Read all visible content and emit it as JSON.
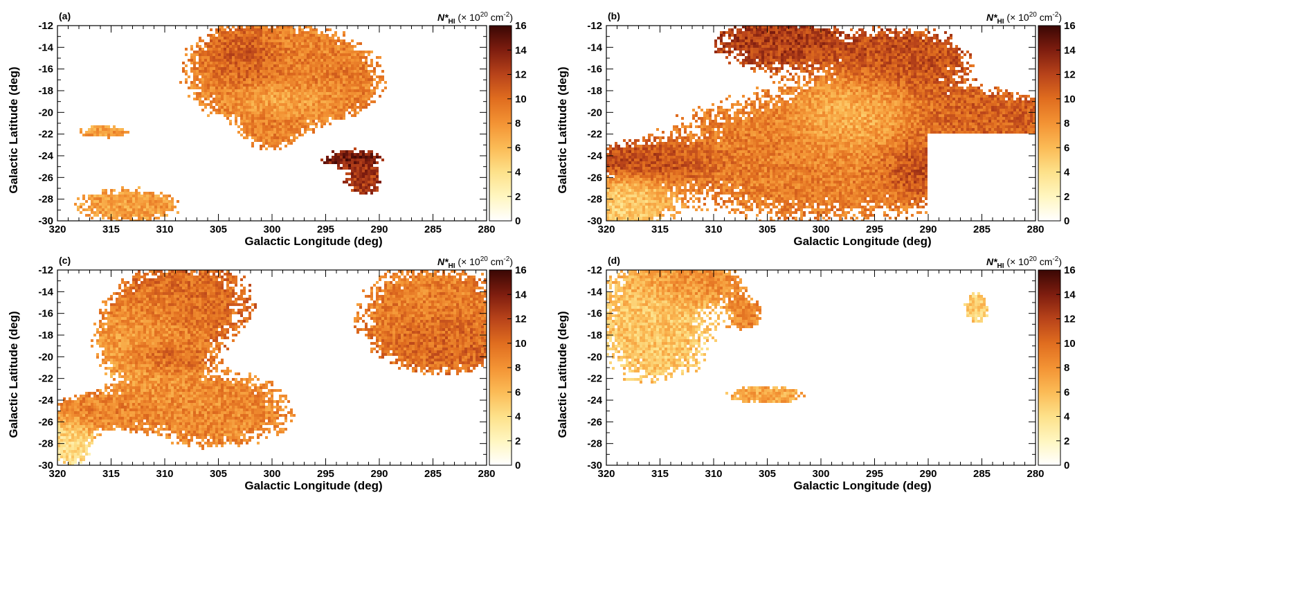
{
  "figure": {
    "xlabel": "Galactic Longitude (deg)",
    "ylabel": "Galactic Latitude (deg)",
    "colorbar": {
      "title_symbol": "N*",
      "title_sub": "HI",
      "title_rest": " (× 10",
      "title_exp": "20",
      "title_unit": " cm",
      "title_unit_exp": "-2",
      "title_close": ")",
      "min": 0,
      "max": 16,
      "ticks": [
        "0",
        "2",
        "4",
        "6",
        "8",
        "10",
        "12",
        "14",
        "16"
      ],
      "colors": [
        "#ffffff",
        "#fff6c0",
        "#fde18a",
        "#fbbb56",
        "#f39334",
        "#e06d1f",
        "#b8431a",
        "#7e1d0f",
        "#3a0704"
      ]
    }
  },
  "chart_data": [
    {
      "type": "heatmap",
      "panel": "(a)",
      "x_ticks": [
        "320",
        "315",
        "310",
        "305",
        "300",
        "295",
        "290",
        "285",
        "280"
      ],
      "y_ticks": [
        "-12",
        "-14",
        "-16",
        "-18",
        "-20",
        "-22",
        "-24",
        "-26",
        "-28",
        "-30"
      ],
      "xlim": [
        320,
        280
      ],
      "ylim": [
        -30,
        -12
      ],
      "blobs": [
        {
          "l": 300,
          "b": -16.5,
          "sl": 6.0,
          "sb": 3.5,
          "v": 8.5
        },
        {
          "l": 302.5,
          "b": -15,
          "sl": 2.0,
          "sb": 1.5,
          "v": 12.5
        },
        {
          "l": 296,
          "b": -17,
          "sl": 3.5,
          "sb": 2.0,
          "v": 9.5
        },
        {
          "l": 298.5,
          "b": -18.8,
          "sl": 2.5,
          "sb": 0.8,
          "v": 5.0
        },
        {
          "l": 300,
          "b": -21.5,
          "sl": 1.5,
          "sb": 1.2,
          "v": 9.0
        },
        {
          "l": 292.5,
          "b": -24.3,
          "sl": 1.8,
          "sb": 0.6,
          "v": 14.5
        },
        {
          "l": 291.5,
          "b": -26.3,
          "sl": 1.2,
          "sb": 1.0,
          "v": 12.5
        },
        {
          "l": 313.5,
          "b": -28.6,
          "sl": 3.5,
          "sb": 1.2,
          "v": 7.5
        },
        {
          "l": 315.5,
          "b": -21.8,
          "sl": 1.8,
          "sb": 0.4,
          "v": 7.5
        }
      ]
    },
    {
      "type": "heatmap",
      "panel": "(b)",
      "x_ticks": [
        "320",
        "315",
        "310",
        "305",
        "300",
        "295",
        "290",
        "285",
        "280"
      ],
      "y_ticks": [
        "-12",
        "-14",
        "-16",
        "-18",
        "-20",
        "-22",
        "-24",
        "-26",
        "-28",
        "-30"
      ],
      "xlim": [
        320,
        280
      ],
      "ylim": [
        -30,
        -12
      ],
      "blobs": [
        {
          "l": 300,
          "b": -24,
          "sl": 11,
          "sb": 4.5,
          "v": 9.0
        },
        {
          "l": 304,
          "b": -13.5,
          "sl": 4.0,
          "sb": 1.5,
          "v": 12.5
        },
        {
          "l": 292,
          "b": -15,
          "sl": 4.0,
          "sb": 2.0,
          "v": 11.5
        },
        {
          "l": 284,
          "b": -20.5,
          "sl": 5.0,
          "sb": 1.5,
          "v": 11.0
        },
        {
          "l": 316,
          "b": -24.5,
          "sl": 3.5,
          "sb": 1.0,
          "v": 12.5
        },
        {
          "l": 297,
          "b": -20.5,
          "sl": 3.0,
          "sb": 2.0,
          "v": 5.0
        },
        {
          "l": 318,
          "b": -28.5,
          "sl": 2.5,
          "sb": 1.5,
          "v": 4.5
        },
        {
          "l": 291,
          "b": -25,
          "sl": 2.0,
          "sb": 1.5,
          "v": 13.0
        }
      ],
      "blank_region": {
        "l_from": 290,
        "l_to": 280,
        "b_from": -30,
        "b_to": -22
      }
    },
    {
      "type": "heatmap",
      "panel": "(c)",
      "x_ticks": [
        "320",
        "315",
        "310",
        "305",
        "300",
        "295",
        "290",
        "285",
        "280"
      ],
      "y_ticks": [
        "-12",
        "-14",
        "-16",
        "-18",
        "-20",
        "-22",
        "-24",
        "-26",
        "-28",
        "-30"
      ],
      "xlim": [
        320,
        280
      ],
      "ylim": [
        -30,
        -12
      ],
      "blobs": [
        {
          "l": 308,
          "b": -15,
          "sl": 4.5,
          "sb": 3.0,
          "v": 10.0
        },
        {
          "l": 312,
          "b": -19,
          "sl": 3.0,
          "sb": 2.5,
          "v": 7.0
        },
        {
          "l": 305,
          "b": -25,
          "sl": 5.0,
          "sb": 2.5,
          "v": 8.5
        },
        {
          "l": 316,
          "b": -25,
          "sl": 3.0,
          "sb": 1.2,
          "v": 9.0
        },
        {
          "l": 285,
          "b": -16,
          "sl": 5.0,
          "sb": 3.5,
          "v": 9.0
        },
        {
          "l": 284,
          "b": -18.5,
          "sl": 3.0,
          "sb": 1.5,
          "v": 11.0
        },
        {
          "l": 319,
          "b": -28,
          "sl": 1.5,
          "sb": 1.5,
          "v": 4.0
        },
        {
          "l": 310,
          "b": -20,
          "sl": 1.8,
          "sb": 0.8,
          "v": 12.0
        }
      ]
    },
    {
      "type": "heatmap",
      "panel": "(d)",
      "x_ticks": [
        "320",
        "315",
        "310",
        "305",
        "300",
        "295",
        "290",
        "285",
        "280"
      ],
      "y_ticks": [
        "-12",
        "-14",
        "-16",
        "-18",
        "-20",
        "-22",
        "-24",
        "-26",
        "-28",
        "-30"
      ],
      "xlim": [
        320,
        280
      ],
      "ylim": [
        -30,
        -12
      ],
      "blobs": [
        {
          "l": 315.5,
          "b": -17,
          "sl": 4.0,
          "sb": 4.0,
          "v": 5.5
        },
        {
          "l": 312,
          "b": -13,
          "sl": 3.0,
          "sb": 1.2,
          "v": 9.0
        },
        {
          "l": 307,
          "b": -16,
          "sl": 1.0,
          "sb": 1.0,
          "v": 9.0
        },
        {
          "l": 305,
          "b": -23.5,
          "sl": 2.5,
          "sb": 0.6,
          "v": 7.0
        },
        {
          "l": 285.5,
          "b": -15.5,
          "sl": 0.8,
          "sb": 1.0,
          "v": 5.0
        }
      ]
    }
  ]
}
